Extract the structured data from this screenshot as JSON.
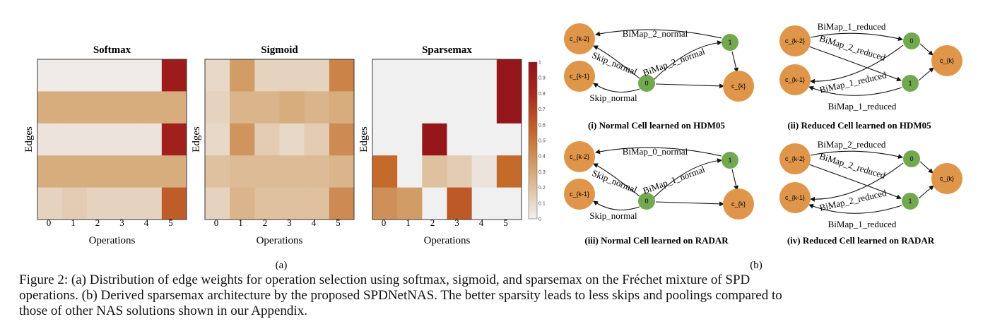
{
  "panel_a": {
    "label": "(a)",
    "charts": [
      {
        "title": "Softmax",
        "ylabel": "Edges",
        "xlabel": "Operations",
        "x_ticks": [
          "0",
          "1",
          "2",
          "3",
          "4",
          "5"
        ],
        "values": [
          [
            0.02,
            0.02,
            0.02,
            0.02,
            0.02,
            0.92
          ],
          [
            0.28,
            0.28,
            0.28,
            0.28,
            0.28,
            0.28
          ],
          [
            0.05,
            0.05,
            0.05,
            0.05,
            0.05,
            0.88
          ],
          [
            0.28,
            0.28,
            0.28,
            0.28,
            0.28,
            0.28
          ],
          [
            0.12,
            0.15,
            0.12,
            0.12,
            0.12,
            0.6
          ]
        ]
      },
      {
        "title": "Sigmoid",
        "ylabel": "Edges",
        "xlabel": "Operations",
        "x_ticks": [
          "0",
          "1",
          "2",
          "3",
          "4",
          "5"
        ],
        "values": [
          [
            0.1,
            0.35,
            0.12,
            0.12,
            0.12,
            0.45
          ],
          [
            0.12,
            0.25,
            0.25,
            0.28,
            0.25,
            0.28
          ],
          [
            0.1,
            0.38,
            0.15,
            0.1,
            0.15,
            0.42
          ],
          [
            0.2,
            0.22,
            0.22,
            0.22,
            0.22,
            0.25
          ],
          [
            0.12,
            0.25,
            0.2,
            0.2,
            0.2,
            0.42
          ]
        ]
      },
      {
        "title": "Sparsemax",
        "ylabel": "Edges",
        "xlabel": "Operations",
        "x_ticks": [
          "0",
          "1",
          "2",
          "3",
          "4",
          "5"
        ],
        "values": [
          [
            0,
            0,
            0,
            0,
            0,
            0.98
          ],
          [
            0,
            0,
            0,
            0,
            0,
            0.98
          ],
          [
            0,
            0,
            0.97,
            0,
            0,
            0
          ],
          [
            0.55,
            0,
            0.2,
            0.15,
            0.05,
            0.55
          ],
          [
            0.4,
            0.35,
            0,
            0.62,
            0,
            0
          ]
        ]
      }
    ],
    "colorbar_ticks": [
      "0",
      "0.1",
      "0.2",
      "0.3",
      "0.4",
      "0.5",
      "0.6",
      "0.7",
      "0.8",
      "0.9",
      "1"
    ]
  },
  "panel_b": {
    "label": "(b)",
    "cells": [
      {
        "caption": "(i) Normal Cell learned on HDM05",
        "nodes": {
          "k2": "c_{k-2}",
          "k1": "c_{k-1}",
          "n0": "0",
          "n1": "1",
          "ck": "c_{k}"
        },
        "edge_labels": [
          "BiMap_2_normal",
          "Skip_normal",
          "BiMap_2_normal",
          "Skip_normal"
        ]
      },
      {
        "caption": "(ii) Reduced Cell learned on HDM05",
        "nodes": {
          "k2": "c_{k-2}",
          "k1": "c_{k-1}",
          "n0": "0",
          "n1": "1",
          "ck": "c_{k}"
        },
        "edge_labels": [
          "BiMap_1_reduced",
          "BiMap_2_reduced",
          "BiMap_1_reduced",
          "BiMap_1_reduced"
        ]
      },
      {
        "caption": "(iii) Normal Cell learned on RADAR",
        "nodes": {
          "k2": "c_{k-2}",
          "k1": "c_{k-1}",
          "n0": "0",
          "n1": "1",
          "ck": "c_{k}"
        },
        "edge_labels": [
          "BiMap_0_normal",
          "Skip_normal",
          "BiMap_1_normal",
          "Skip_normal"
        ]
      },
      {
        "caption": "(iv) Reduced Cell learned on RADAR",
        "nodes": {
          "k2": "c_{k-2}",
          "k1": "c_{k-1}",
          "n0": "0",
          "n1": "1",
          "ck": "c_{k}"
        },
        "edge_labels": [
          "BiMap_2_reduced",
          "BiMap_2_reduced",
          "BiMap_2_reduced",
          "BiMap_1_reduced"
        ]
      }
    ]
  },
  "caption_lines": [
    "Figure 2: (a) Distribution of edge weights for operation selection using softmax, sigmoid, and sparsemax on the Fréchet mixture of SPD",
    "operations. (b) Derived sparsemax architecture by the proposed SPDNetNAS. The better sparsity leads to less skips and poolings compared to",
    "those of other NAS solutions shown in our Appendix."
  ]
}
